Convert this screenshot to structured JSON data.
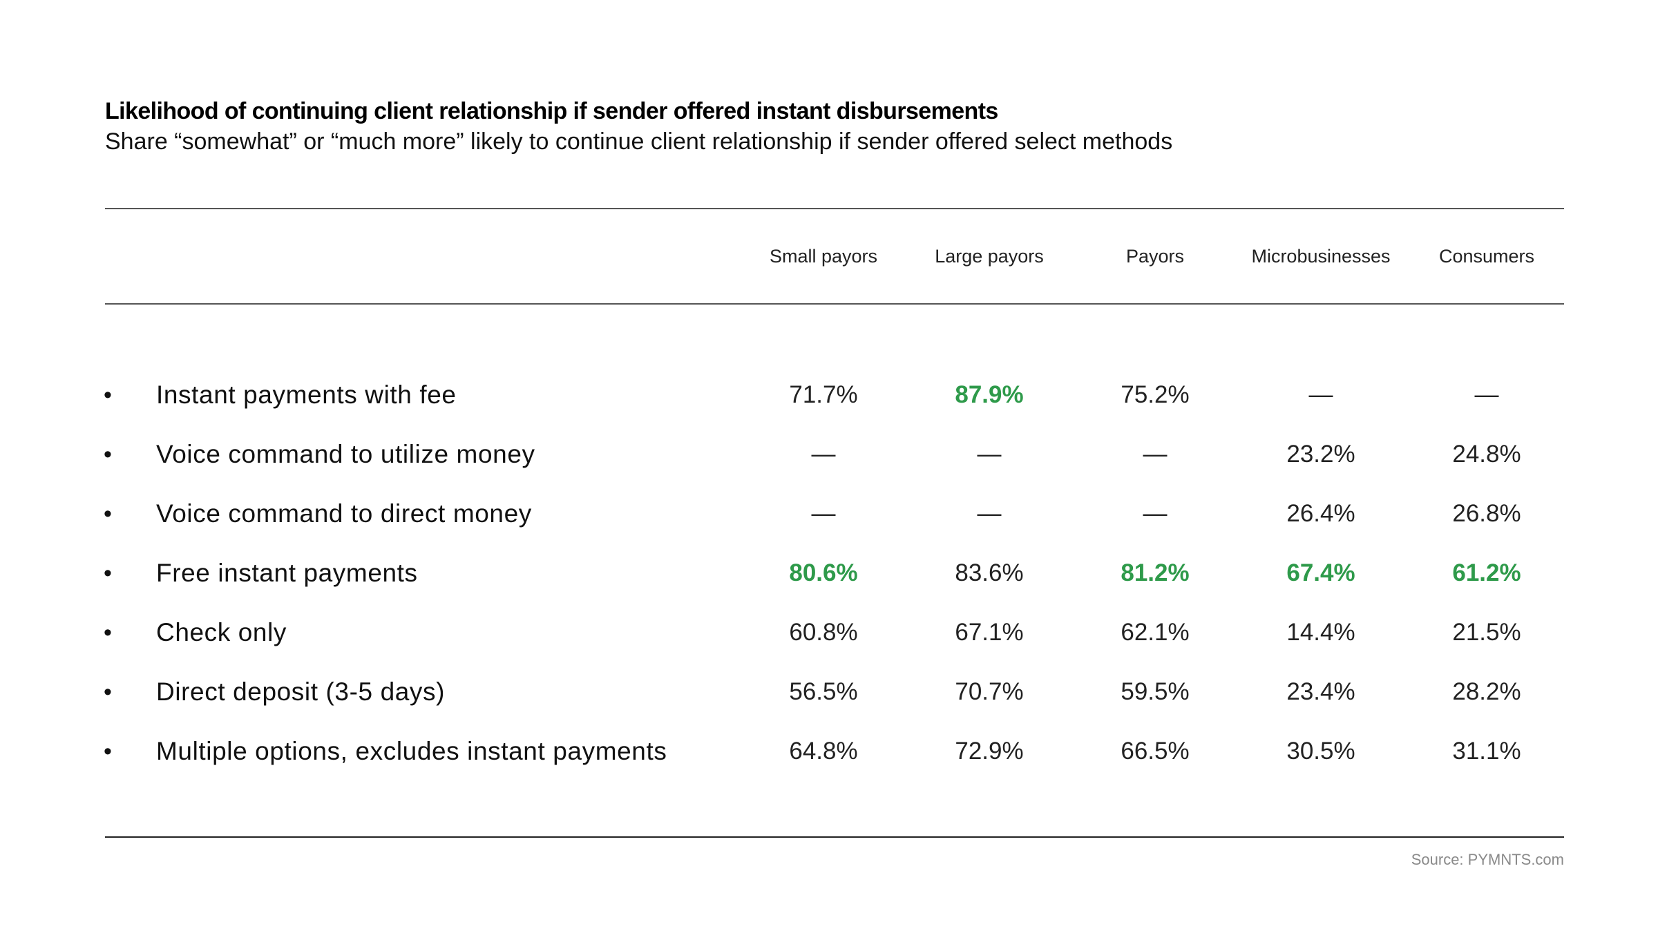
{
  "title": "Likelihood of continuing client relationship if sender offered instant disbursements",
  "subtitle": "Share “somewhat” or “much more” likely to continue client relationship if sender offered select methods",
  "source": "Source: PYMNTS.com",
  "colors": {
    "highlight": "#2e9a4a",
    "text": "#222222",
    "rule": "#555555",
    "source": "#8a8a8a"
  },
  "bullet_glyph": "•",
  "chart_data": {
    "type": "table",
    "title": "Likelihood of continuing client relationship if sender offered instant disbursements",
    "subtitle": "Share “somewhat” or “much more” likely to continue client relationship if sender offered select methods",
    "columns": [
      "Small payors",
      "Large payors",
      "Payors",
      "Microbusinesses",
      "Consumers"
    ],
    "rows": [
      {
        "label": "Instant payments with fee",
        "values": [
          "71.7%",
          "87.9%",
          "75.2%",
          "—",
          "—"
        ],
        "highlight": [
          false,
          true,
          false,
          false,
          false
        ]
      },
      {
        "label": "Voice command to utilize money",
        "values": [
          "—",
          "—",
          "—",
          "23.2%",
          "24.8%"
        ],
        "highlight": [
          false,
          false,
          false,
          false,
          false
        ]
      },
      {
        "label": "Voice command to direct money",
        "values": [
          "—",
          "—",
          "—",
          "26.4%",
          "26.8%"
        ],
        "highlight": [
          false,
          false,
          false,
          false,
          false
        ]
      },
      {
        "label": "Free instant payments",
        "values": [
          "80.6%",
          "83.6%",
          "81.2%",
          "67.4%",
          "61.2%"
        ],
        "highlight": [
          true,
          false,
          true,
          true,
          true
        ]
      },
      {
        "label": "Check only",
        "values": [
          "60.8%",
          "67.1%",
          "62.1%",
          "14.4%",
          "21.5%"
        ],
        "highlight": [
          false,
          false,
          false,
          false,
          false
        ]
      },
      {
        "label": "Direct deposit (3-5 days)",
        "values": [
          "56.5%",
          "70.7%",
          "59.5%",
          "23.4%",
          "28.2%"
        ],
        "highlight": [
          false,
          false,
          false,
          false,
          false
        ]
      },
      {
        "label": "Multiple options, excludes instant payments",
        "values": [
          "64.8%",
          "72.9%",
          "66.5%",
          "30.5%",
          "31.1%"
        ],
        "highlight": [
          false,
          false,
          false,
          false,
          false
        ]
      }
    ],
    "source": "Source: PYMNTS.com"
  }
}
